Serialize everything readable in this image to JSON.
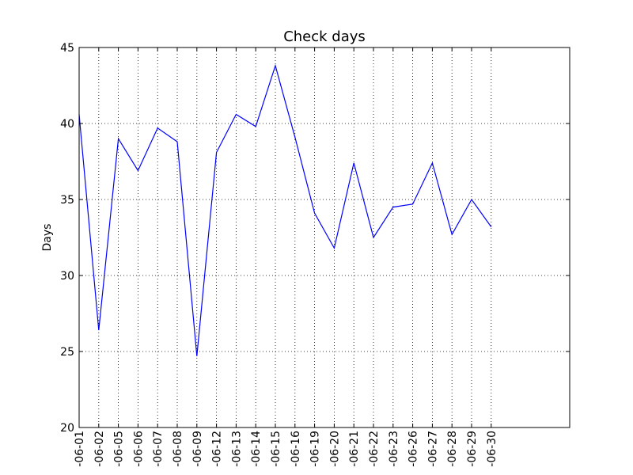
{
  "chart_data": {
    "type": "line",
    "title": "Check days",
    "xlabel": "",
    "ylabel": "Days",
    "ylim": [
      20,
      45
    ],
    "yticks": [
      20,
      25,
      30,
      35,
      40,
      45
    ],
    "grid": true,
    "categories": [
      "-06-01",
      "-06-02",
      "-06-05",
      "-06-06",
      "-06-07",
      "-06-08",
      "-06-09",
      "-06-12",
      "-06-13",
      "-06-14",
      "-06-15",
      "-06-16",
      "-06-19",
      "-06-20",
      "-06-21",
      "-06-22",
      "-06-23",
      "-06-26",
      "-06-27",
      "-06-28",
      "-06-29",
      "-06-30"
    ],
    "series": [
      {
        "values": [
          40.6,
          26.4,
          39.0,
          36.9,
          39.7,
          38.8,
          24.7,
          38.1,
          40.6,
          39.8,
          43.8,
          39.1,
          34.1,
          31.8,
          37.4,
          32.5,
          34.5,
          34.7,
          37.4,
          32.7,
          35.0,
          33.2
        ],
        "color": "#0000ff"
      }
    ],
    "colors": {
      "line": "#0000ff",
      "grid": "#000000",
      "axes": "#000000"
    }
  }
}
